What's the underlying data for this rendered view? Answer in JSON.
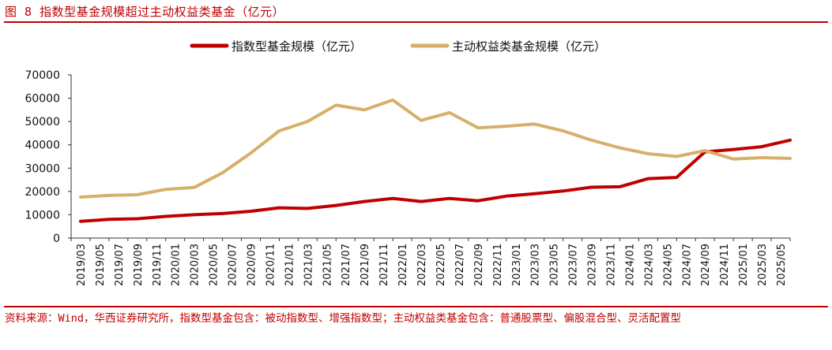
{
  "figure": {
    "title": "图 8 指数型基金规模超过主动权益类基金（亿元）",
    "source": "资料来源：Wind，华西证券研究所，指数型基金包含：被动指数型、增强指数型；主动权益类基金包含：普通股票型、偏股混合型、灵活配置型"
  },
  "colors": {
    "accent": "#c00000",
    "index_series": "#c00000",
    "active_series": "#d6b06b"
  },
  "chart_data": {
    "type": "line",
    "title": "",
    "xlabel": "",
    "ylabel": "",
    "ylim": [
      0,
      70000
    ],
    "yticks": [
      "0",
      "10000",
      "20000",
      "30000",
      "40000",
      "50000",
      "60000",
      "70000"
    ],
    "grid": false,
    "legend_position": "top-center",
    "categories": [
      "2019/03",
      "2019/05",
      "2019/07",
      "2019/09",
      "2019/11",
      "2020/01",
      "2020/03",
      "2020/05",
      "2020/07",
      "2020/09",
      "2020/11",
      "2021/01",
      "2021/03",
      "2021/05",
      "2021/07",
      "2021/09",
      "2021/11",
      "2022/01",
      "2022/03",
      "2022/05",
      "2022/07",
      "2022/09",
      "2022/11",
      "2023/01",
      "2023/03",
      "2023/05",
      "2023/07",
      "2023/09",
      "2023/11",
      "2024/01",
      "2024/03",
      "2024/05",
      "2024/07",
      "2024/09",
      "2024/11",
      "2025/01",
      "2025/03",
      "2025/05"
    ],
    "series": [
      {
        "name": "指数型基金规模（亿元）",
        "color": "#c00000",
        "x": [
          "2019/03",
          "2019/06",
          "2019/09",
          "2019/12",
          "2020/03",
          "2020/06",
          "2020/09",
          "2020/12",
          "2021/03",
          "2021/06",
          "2021/09",
          "2021/12",
          "2022/03",
          "2022/06",
          "2022/09",
          "2022/12",
          "2023/03",
          "2023/06",
          "2023/09",
          "2023/12",
          "2024/03",
          "2024/06",
          "2024/09",
          "2024/12",
          "2025/03",
          "2025/06"
        ],
        "values": [
          7200,
          8000,
          8300,
          9300,
          10000,
          10500,
          11500,
          13000,
          12700,
          14000,
          15700,
          17000,
          15700,
          17000,
          16000,
          18000,
          19000,
          20200,
          21800,
          22000,
          25500,
          26000,
          37000,
          38000,
          39200,
          42000
        ]
      },
      {
        "name": "主动权益类基金规模（亿元）",
        "color": "#d6b06b",
        "x": [
          "2019/03",
          "2019/06",
          "2019/09",
          "2019/12",
          "2020/03",
          "2020/06",
          "2020/09",
          "2020/12",
          "2021/03",
          "2021/06",
          "2021/09",
          "2021/12",
          "2022/03",
          "2022/06",
          "2022/09",
          "2022/12",
          "2023/03",
          "2023/06",
          "2023/09",
          "2023/12",
          "2024/03",
          "2024/06",
          "2024/09",
          "2024/12",
          "2025/03",
          "2025/06"
        ],
        "values": [
          17600,
          18300,
          18600,
          20900,
          21700,
          28000,
          36500,
          46000,
          50000,
          57000,
          55000,
          59200,
          50500,
          53800,
          47300,
          48000,
          48900,
          46000,
          42000,
          38700,
          36200,
          35000,
          37500,
          33900,
          34500,
          34200
        ]
      }
    ]
  }
}
